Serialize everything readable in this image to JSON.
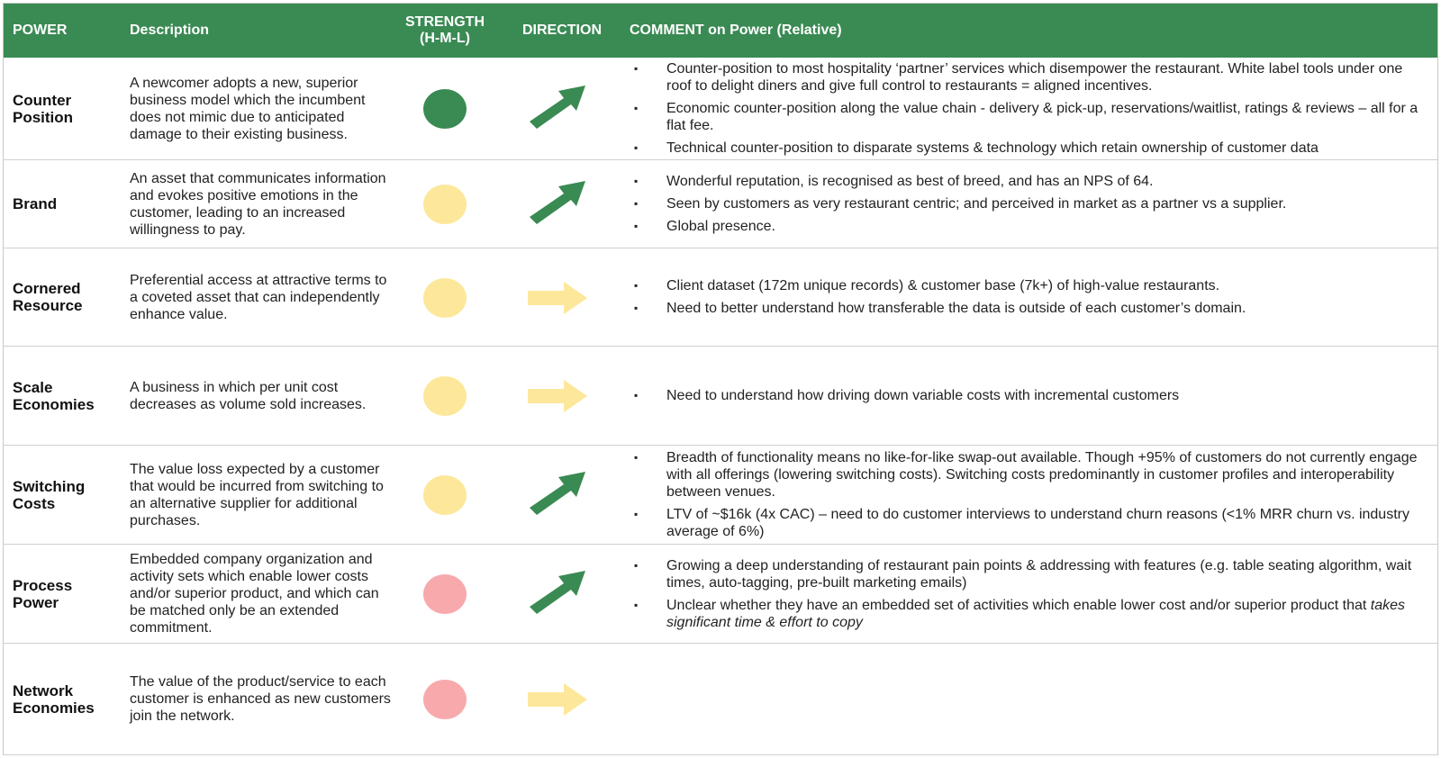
{
  "header": {
    "power": "POWER",
    "description": "Description",
    "strength_line1": "STRENGTH",
    "strength_line2": "(H-M-L)",
    "direction": "DIRECTION",
    "comment": "COMMENT on Power (Relative)"
  },
  "colors": {
    "header_bg": "#3a8a53",
    "high": "#3a8a53",
    "medium": "#fde79a",
    "low": "#f7a9ac",
    "arrow_up": "#3a8a53",
    "arrow_flat": "#fde79a"
  },
  "rows": [
    {
      "power": "Counter Position",
      "description": "A newcomer adopts a new, superior business model which the incumbent does not mimic due to anticipated damage to their existing business.",
      "strength": "H",
      "direction": "up",
      "comments": [
        "Counter-position to most hospitality ‘partner’ services which disempower the restaurant. White label tools under one roof to delight diners and give full control to restaurants = aligned incentives.",
        "Economic counter-position along the value chain - delivery & pick-up, reservations/waitlist, ratings & reviews – all for a flat fee.",
        "Technical counter-position to disparate systems & technology which retain ownership of customer data"
      ]
    },
    {
      "power": "Brand",
      "description": "An asset that communicates information and evokes positive emotions in the customer, leading to an increased willingness to pay.",
      "strength": "M",
      "direction": "up",
      "comments": [
        "Wonderful reputation, is recognised as best of breed, and has an NPS of 64.",
        "Seen by customers as very restaurant centric; and perceived in market as a partner vs a supplier.",
        "Global presence."
      ]
    },
    {
      "power": "Cornered Resource",
      "description": "Preferential access at attractive terms to a coveted asset that can independently enhance value.",
      "strength": "M",
      "direction": "flat",
      "comments": [
        "Client dataset (172m unique records) & customer base (7k+) of high-value restaurants.",
        "Need to better understand how transferable the data is outside of each customer’s domain."
      ]
    },
    {
      "power": "Scale Economies",
      "description": "A business in which per unit cost decreases as volume sold increases.",
      "strength": "M",
      "direction": "flat",
      "comments": [
        "Need to understand how driving down variable costs with incremental customers"
      ]
    },
    {
      "power": "Switching Costs",
      "description": "The value loss expected by a customer that would be incurred from switching to an alternative supplier for additional purchases.",
      "strength": "M",
      "direction": "up",
      "comments": [
        "Breadth of functionality means no like-for-like swap-out available. Though +95% of customers do not currently engage with all offerings (lowering switching costs). Switching costs predominantly in customer profiles and interoperability between venues.",
        "LTV of ~$16k (4x CAC) – need to do customer interviews to understand churn reasons (<1% MRR churn vs. industry average of 6%)"
      ]
    },
    {
      "power": "Process Power",
      "description": "Embedded company organization and activity sets which enable lower costs and/or superior product, and which can be matched only be an extended commitment.",
      "strength": "L",
      "direction": "up",
      "comments": [
        "Growing a deep understanding of restaurant pain points & addressing with features (e.g. table seating algorithm, wait times, auto-tagging, pre-built marketing emails)"
      ],
      "comment_split": {
        "before": "Unclear whether they have an embedded set of activities which enable lower cost and/or superior product that ",
        "italic": "takes significant time & effort to copy"
      }
    },
    {
      "power": "Network Economies",
      "description": "The value of the product/service to each customer is enhanced as new customers join the network.",
      "strength": "L",
      "direction": "flat",
      "comments": []
    }
  ]
}
